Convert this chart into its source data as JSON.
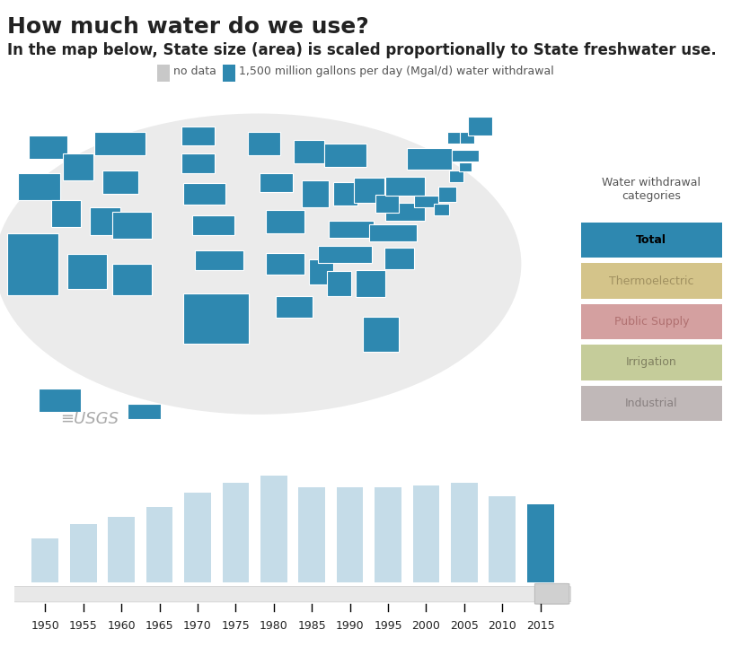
{
  "title": "How much water do we use?",
  "subtitle": "In the map below, State size (area) is scaled proportionally to State freshwater use.",
  "legend_no_data_color": "#c8c8c8",
  "legend_data_color": "#2e88b0",
  "legend_text1": "no data",
  "legend_text2": "1,500 million gallons per day (Mgal/d) water withdrawal",
  "map_bg_color": "#ebebeb",
  "state_color": "#2e88b0",
  "bar_years": [
    1950,
    1955,
    1960,
    1965,
    1970,
    1975,
    1980,
    1985,
    1990,
    1995,
    2000,
    2005,
    2010,
    2015
  ],
  "bar_values": [
    180,
    240,
    270,
    310,
    370,
    410,
    440,
    390,
    390,
    390,
    400,
    410,
    355,
    322
  ],
  "bar_color_default": "#c5dce8",
  "bar_color_selected": "#2e88b0",
  "bar_selected_index": 13,
  "slider_color": "#e8e8e8",
  "slider_handle_color": "#d0d0d0",
  "categories_title": "Water withdrawal\ncategories",
  "categories": [
    "Total",
    "Thermoelectric",
    "Public Supply",
    "Irrigation",
    "Industrial"
  ],
  "category_colors": [
    "#2e88b0",
    "#d4c48a",
    "#d4a0a0",
    "#c5cc9a",
    "#c0b8b8"
  ],
  "category_text_colors": [
    "#000000",
    "#a09060",
    "#b07070",
    "#808060",
    "#888080"
  ],
  "fig_bg": "#ffffff",
  "tick_label_size": 9,
  "axis_label_size": 10,
  "title_fontsize": 18,
  "subtitle_fontsize": 12,
  "usgs_text": "USGS",
  "bottom_tick_years": [
    1950,
    1955,
    1960,
    1965,
    1970,
    1975,
    1980,
    1985,
    1990,
    1995,
    2000,
    2005,
    2010,
    2015
  ]
}
